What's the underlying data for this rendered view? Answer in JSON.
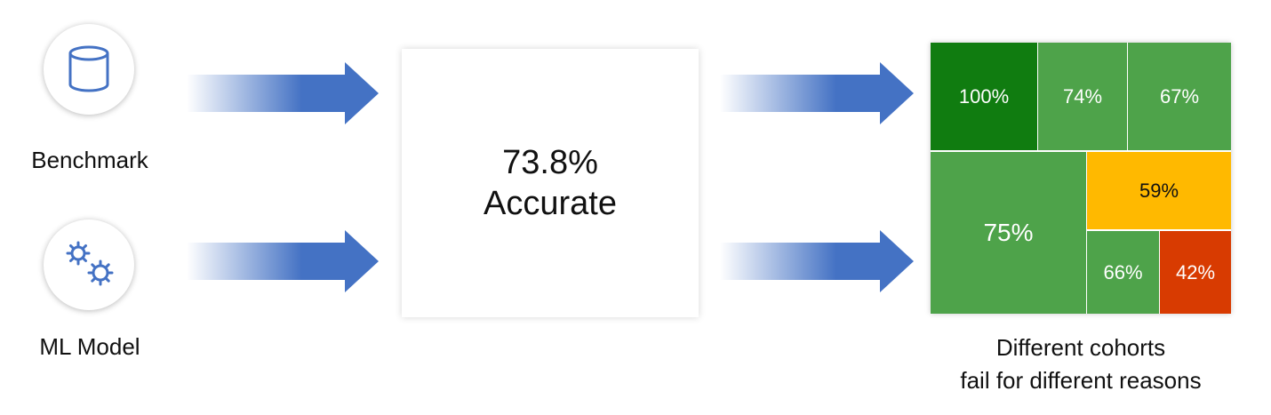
{
  "inputs": [
    {
      "label": "Benchmark",
      "icon": "database-icon"
    },
    {
      "label": "ML Model",
      "icon": "gears-icon"
    }
  ],
  "result": {
    "line1": "73.8%",
    "line2": "Accurate"
  },
  "cohorts": [
    {
      "label": "100%",
      "value": 100,
      "color": "#107c10"
    },
    {
      "label": "74%",
      "value": 74,
      "color": "#4ea34a"
    },
    {
      "label": "67%",
      "value": 67,
      "color": "#4ea34a"
    },
    {
      "label": "75%",
      "value": 75,
      "color": "#4ea34a"
    },
    {
      "label": "59%",
      "value": 59,
      "color": "#ffb900"
    },
    {
      "label": "66%",
      "value": 66,
      "color": "#4ea34a"
    },
    {
      "label": "42%",
      "value": 42,
      "color": "#d83b01"
    }
  ],
  "caption": {
    "line1": "Different cohorts",
    "line2": "fail for different reasons"
  },
  "colors": {
    "arrow": "#4472c4",
    "icon": "#4472c4"
  }
}
